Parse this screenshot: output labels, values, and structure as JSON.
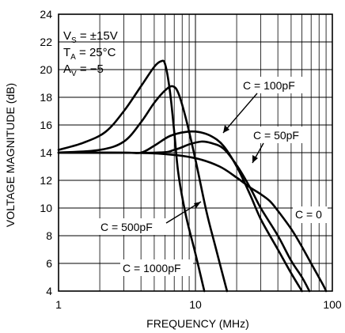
{
  "chart_data": {
    "type": "line",
    "xlabel": "FREQUENCY (MHz)",
    "ylabel": "VOLTAGE MAGNITUDE (dB)",
    "xscale": "log",
    "xlim": [
      1,
      100
    ],
    "ylim": [
      4,
      24
    ],
    "grid": true,
    "x_tick_labels": [
      "1",
      "10",
      "100"
    ],
    "y_tick_labels": [
      "4",
      "6",
      "8",
      "10",
      "12",
      "14",
      "16",
      "18",
      "20",
      "22",
      "24"
    ],
    "conditions": [
      {
        "main": "V",
        "sub": "S",
        "rest": " = ±15V"
      },
      {
        "main": "T",
        "sub": "A",
        "rest": " = 25°C"
      },
      {
        "main": "A",
        "sub": "V",
        "rest": " = −5"
      }
    ],
    "series": [
      {
        "name": "C = 1000pF",
        "points": [
          [
            1,
            14.2
          ],
          [
            1.5,
            14.7
          ],
          [
            2.2,
            15.5
          ],
          [
            3,
            17
          ],
          [
            4,
            18.8
          ],
          [
            5,
            20.2
          ],
          [
            5.6,
            20.6
          ],
          [
            6,
            20.4
          ],
          [
            6.5,
            18.5
          ],
          [
            7,
            15.5
          ],
          [
            7.5,
            12.5
          ],
          [
            8.5,
            9.5
          ],
          [
            10,
            6.7
          ],
          [
            11.6,
            4
          ]
        ]
      },
      {
        "name": "C = 500pF",
        "points": [
          [
            1,
            14
          ],
          [
            2,
            14.2
          ],
          [
            3,
            14.8
          ],
          [
            4,
            16.2
          ],
          [
            5,
            17.6
          ],
          [
            6,
            18.5
          ],
          [
            6.8,
            18.8
          ],
          [
            7.5,
            18.3
          ],
          [
            8.5,
            16.5
          ],
          [
            10,
            13.5
          ],
          [
            12,
            9.8
          ],
          [
            14,
            7.2
          ],
          [
            17,
            4
          ]
        ]
      },
      {
        "name": "C = 100pF",
        "points": [
          [
            1,
            14
          ],
          [
            3,
            14
          ],
          [
            4,
            14
          ],
          [
            5,
            14.5
          ],
          [
            6.5,
            15.2
          ],
          [
            8.5,
            15.5
          ],
          [
            10.5,
            15.5
          ],
          [
            13,
            15.2
          ],
          [
            16,
            14.5
          ],
          [
            20,
            13
          ],
          [
            25,
            11
          ],
          [
            30,
            9.2
          ],
          [
            40,
            7
          ],
          [
            50,
            5.3
          ],
          [
            60,
            4
          ]
        ]
      },
      {
        "name": "C = 50pF",
        "points": [
          [
            1,
            14
          ],
          [
            5,
            14
          ],
          [
            7,
            14.2
          ],
          [
            9,
            14.6
          ],
          [
            11,
            14.8
          ],
          [
            13,
            14.7
          ],
          [
            16,
            14.3
          ],
          [
            20,
            13.1
          ],
          [
            25,
            11.5
          ],
          [
            30,
            10
          ],
          [
            40,
            8
          ],
          [
            50,
            6.2
          ],
          [
            60,
            5
          ],
          [
            68,
            4
          ]
        ]
      },
      {
        "name": "C = 0",
        "points": [
          [
            1,
            14
          ],
          [
            3,
            14
          ],
          [
            6,
            13.9
          ],
          [
            10,
            13.6
          ],
          [
            15,
            13
          ],
          [
            20,
            12.2
          ],
          [
            25,
            11.5
          ],
          [
            30,
            11
          ],
          [
            35,
            10.5
          ],
          [
            40,
            9.8
          ],
          [
            50,
            8.5
          ],
          [
            60,
            7.2
          ],
          [
            70,
            6
          ],
          [
            85,
            4.5
          ],
          [
            90,
            4
          ]
        ]
      }
    ]
  }
}
